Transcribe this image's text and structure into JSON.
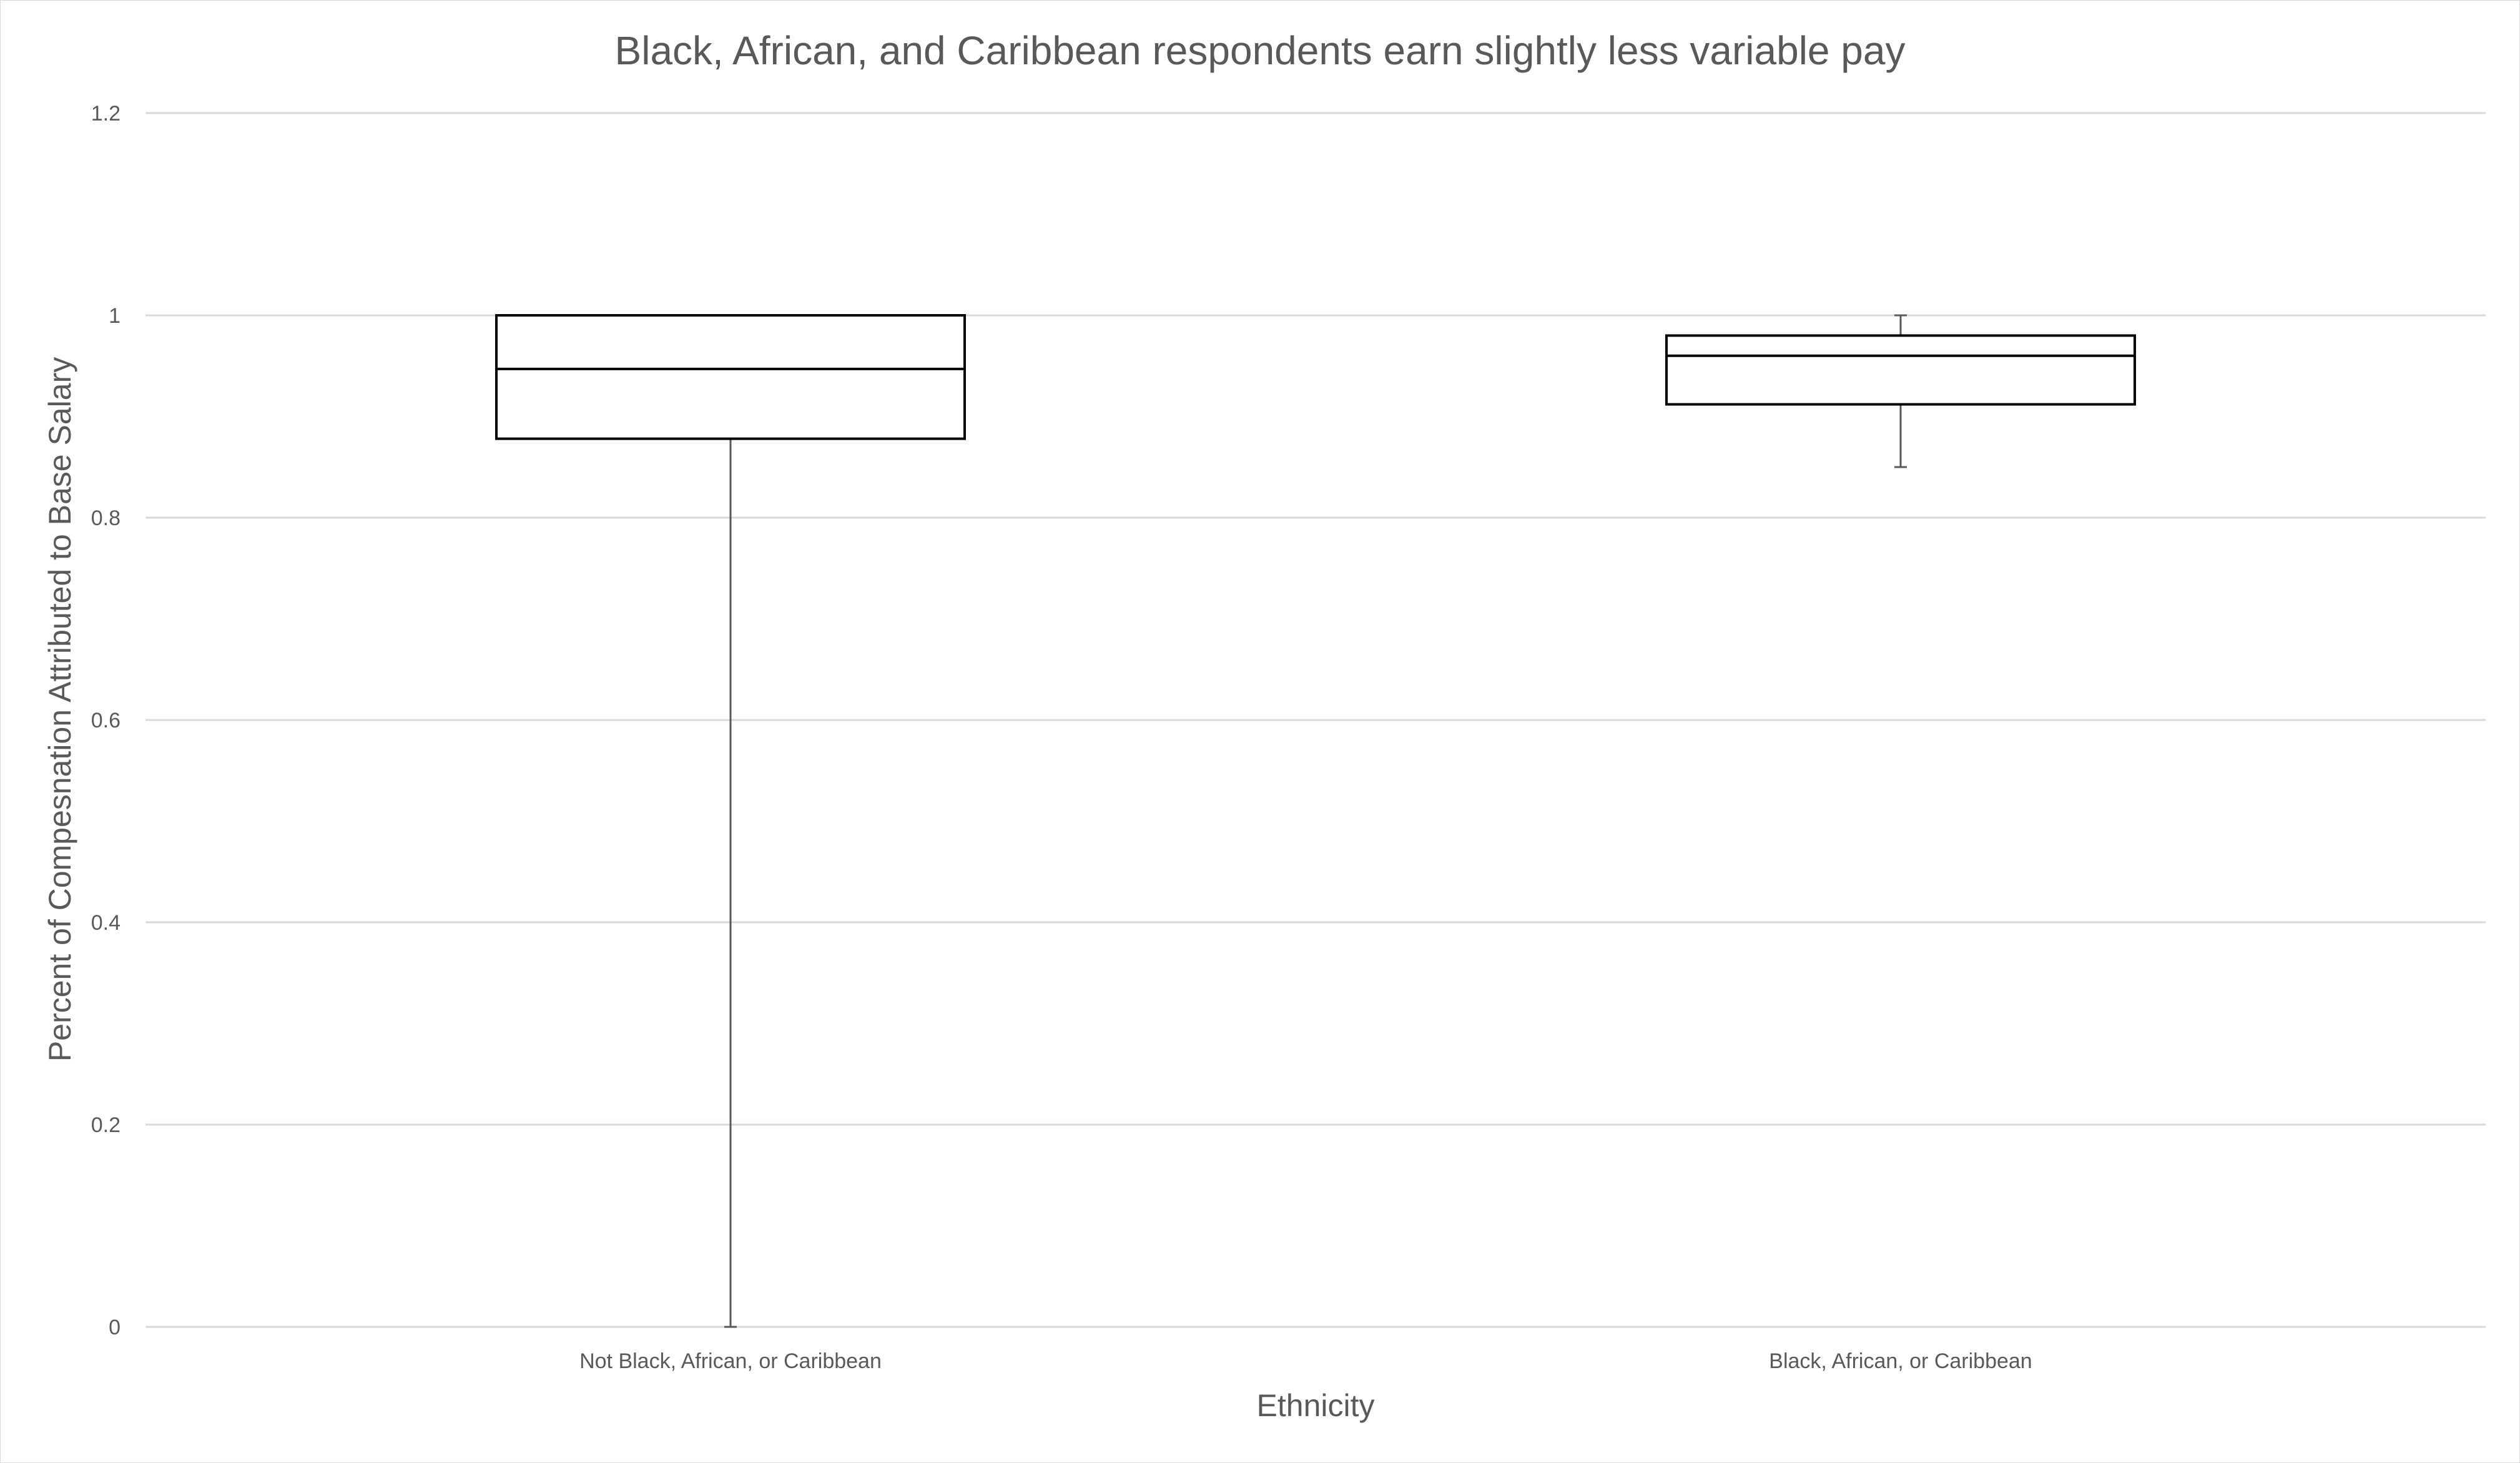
{
  "chart_data": {
    "type": "box",
    "title": "Black, African, and Caribbean respondents earn slightly less variable pay",
    "xlabel": "Ethnicity",
    "ylabel": "Percent of Compesnation Attributed to Base Salary",
    "ylim": [
      0,
      1.2
    ],
    "yticks": [
      "0",
      "0.2",
      "0.4",
      "0.6",
      "0.8",
      "1",
      "1.2"
    ],
    "grid": true,
    "legend": "none",
    "categories": [
      "Not Black, African, or Caribbean",
      "Black, African, or Caribbean"
    ],
    "boxes": [
      {
        "category": "Not Black, African, or Caribbean",
        "min": 0.0,
        "q1": 0.878,
        "median": 0.947,
        "q3": 1.0,
        "max": 1.0
      },
      {
        "category": "Black, African, or Caribbean",
        "min": 0.85,
        "q1": 0.912,
        "median": 0.96,
        "q3": 0.98,
        "max": 1.0
      }
    ],
    "colors": {
      "box_stroke": "#000000",
      "box_fill": "#ffffff",
      "whisker": "#595959",
      "grid": "#d9d9d9",
      "text": "#595959"
    }
  }
}
